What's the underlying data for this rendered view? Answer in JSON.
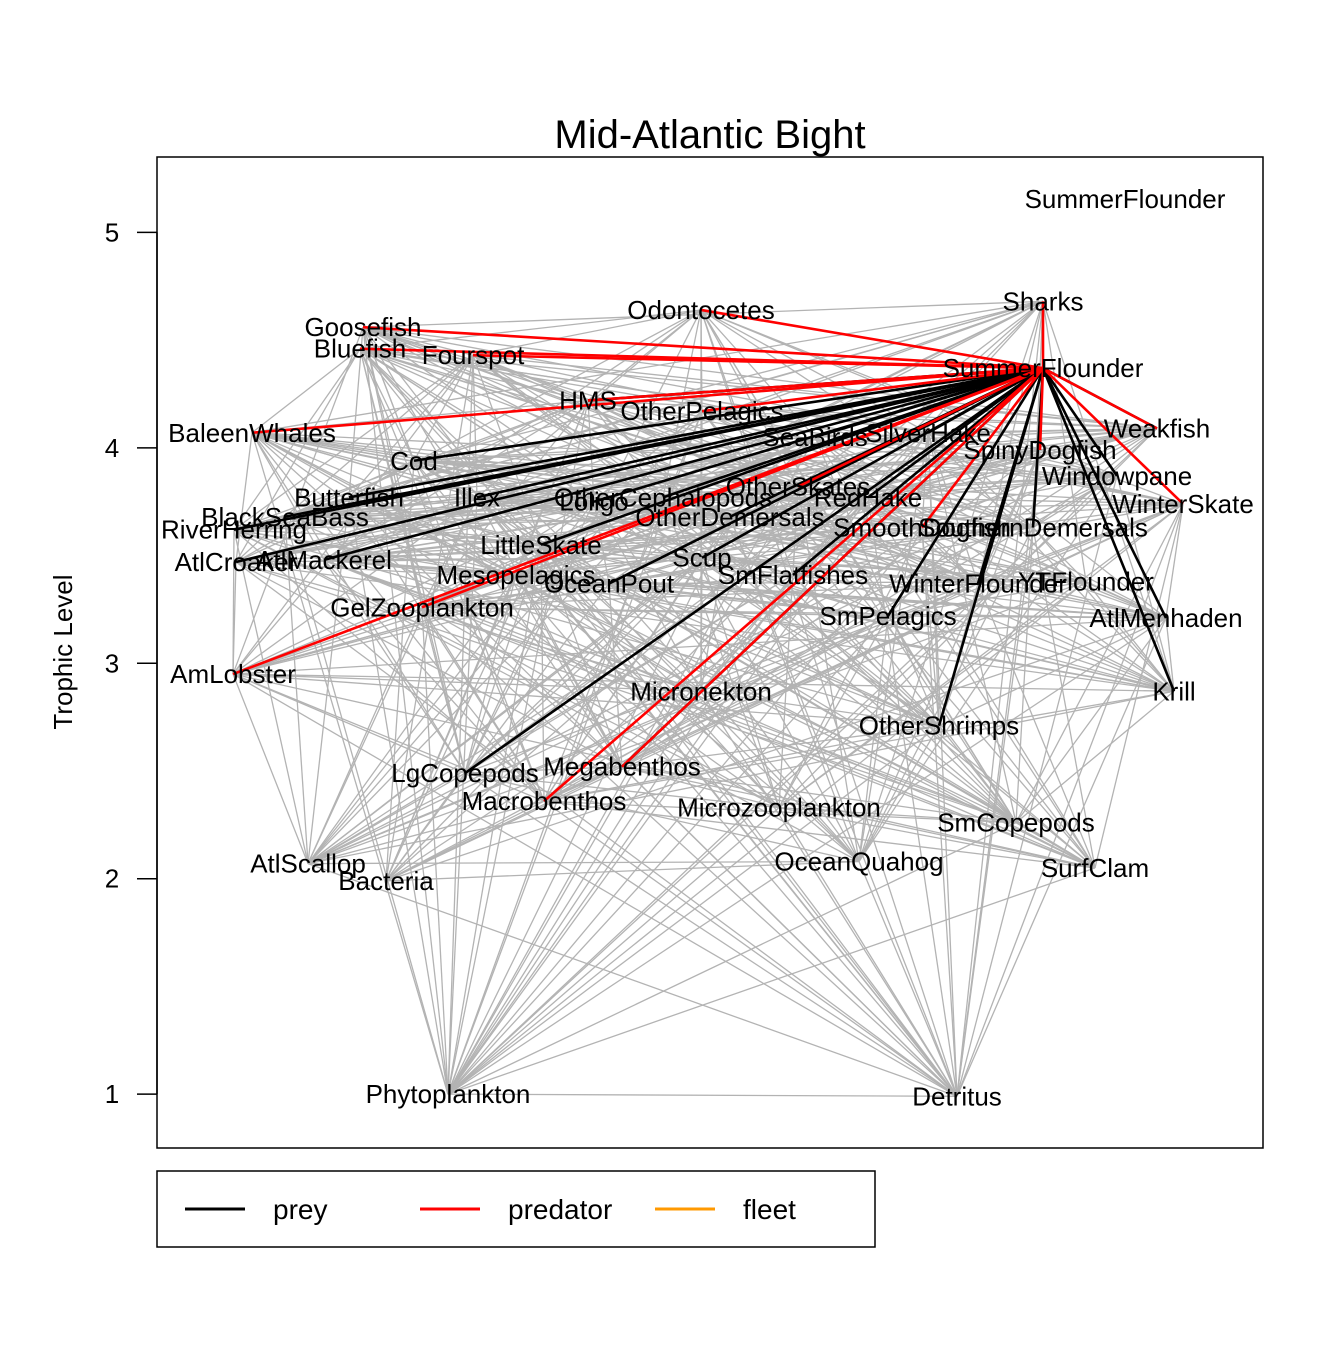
{
  "chart_data": {
    "type": "network",
    "title": "Mid-Atlantic Bight",
    "ylabel": "Trophic Level",
    "ylim": [
      0.75,
      5.35
    ],
    "yticks": [
      1,
      2,
      3,
      4,
      5
    ],
    "grid": false,
    "legend_position": "bottom-left",
    "legend": [
      {
        "name": "prey",
        "color": "#000000"
      },
      {
        "name": "predator",
        "color": "#ff0000"
      },
      {
        "name": "fleet",
        "color": "#ff9900"
      }
    ],
    "focal_node": "SummerFlounder",
    "focal_header": "SummerFlounder",
    "colors": {
      "background_edge": "#b3b3b3",
      "prey": "#000000",
      "predator": "#ff0000",
      "fleet": "#ff9900"
    },
    "nodes": [
      {
        "name": "SummerFlounder",
        "tl": 4.37
      },
      {
        "name": "Sharks",
        "tl": 4.68
      },
      {
        "name": "Odontocetes",
        "tl": 4.64
      },
      {
        "name": "Goosefish",
        "tl": 4.56
      },
      {
        "name": "Bluefish",
        "tl": 4.46
      },
      {
        "name": "Fourspot",
        "tl": 4.43
      },
      {
        "name": "HMS",
        "tl": 4.22
      },
      {
        "name": "OtherPelagics",
        "tl": 4.17
      },
      {
        "name": "BaleenWhales",
        "tl": 4.07
      },
      {
        "name": "Weakfish",
        "tl": 4.09
      },
      {
        "name": "SeaBirds",
        "tl": 4.05
      },
      {
        "name": "SilverHake",
        "tl": 4.07
      },
      {
        "name": "SpinyDogfish",
        "tl": 3.99
      },
      {
        "name": "Cod",
        "tl": 3.94
      },
      {
        "name": "Windowpane",
        "tl": 3.87
      },
      {
        "name": "OtherSkates",
        "tl": 3.82
      },
      {
        "name": "Butterfish",
        "tl": 3.77
      },
      {
        "name": "Illex",
        "tl": 3.77
      },
      {
        "name": "OtherCephalopods",
        "tl": 3.77
      },
      {
        "name": "RedHake",
        "tl": 3.77
      },
      {
        "name": "Loligo",
        "tl": 3.75
      },
      {
        "name": "WinterSkate",
        "tl": 3.74
      },
      {
        "name": "BlackSeaBass",
        "tl": 3.68
      },
      {
        "name": "OtherDemersals",
        "tl": 3.68
      },
      {
        "name": "SmoothDogfish",
        "tl": 3.63
      },
      {
        "name": "SouthernDemersals",
        "tl": 3.63
      },
      {
        "name": "RiverHerring",
        "tl": 3.62
      },
      {
        "name": "LittleSkate",
        "tl": 3.55
      },
      {
        "name": "Scup",
        "tl": 3.49
      },
      {
        "name": "AtlCroaker",
        "tl": 3.47
      },
      {
        "name": "AtlMackerel",
        "tl": 3.48
      },
      {
        "name": "Mesopelagics",
        "tl": 3.41
      },
      {
        "name": "OceanPout",
        "tl": 3.37
      },
      {
        "name": "SmFlatfishes",
        "tl": 3.41
      },
      {
        "name": "WinterFlounder",
        "tl": 3.37
      },
      {
        "name": "YTFlounder",
        "tl": 3.38
      },
      {
        "name": "GelZooplankton",
        "tl": 3.26
      },
      {
        "name": "SmPelagics",
        "tl": 3.22
      },
      {
        "name": "AtlMenhaden",
        "tl": 3.21
      },
      {
        "name": "AmLobster",
        "tl": 2.95
      },
      {
        "name": "Micronekton",
        "tl": 2.87
      },
      {
        "name": "Krill",
        "tl": 2.87
      },
      {
        "name": "OtherShrimps",
        "tl": 2.71
      },
      {
        "name": "LgCopepods",
        "tl": 2.49
      },
      {
        "name": "Megabenthos",
        "tl": 2.52
      },
      {
        "name": "Macrobenthos",
        "tl": 2.36
      },
      {
        "name": "Microzooplankton",
        "tl": 2.33
      },
      {
        "name": "SmCopepods",
        "tl": 2.26
      },
      {
        "name": "AtlScallop",
        "tl": 2.07
      },
      {
        "name": "OceanQuahog",
        "tl": 2.08
      },
      {
        "name": "SurfClam",
        "tl": 2.05
      },
      {
        "name": "Bacteria",
        "tl": 1.99
      },
      {
        "name": "Phytoplankton",
        "tl": 1.0
      },
      {
        "name": "Detritus",
        "tl": 0.99
      }
    ],
    "prey": [
      "Cod",
      "Butterfish",
      "Illex",
      "OtherCephalopods",
      "Loligo",
      "BlackSeaBass",
      "RiverHerring",
      "AtlMackerel",
      "AtlCroaker",
      "OceanPout",
      "Scup",
      "SmFlatfishes",
      "LittleSkate",
      "LgCopepods",
      "Megabenthos",
      "SmPelagics",
      "OtherShrimps",
      "AtlMenhaden",
      "Krill",
      "SilverHake",
      "RedHake",
      "OtherSkates",
      "SouthernDemersals",
      "WinterFlounder",
      "Weakfish",
      "Windowpane",
      "OtherDemersals",
      "SeaBirds",
      "HMS"
    ],
    "predators": [
      "Sharks",
      "Odontocetes",
      "Goosefish",
      "Bluefish",
      "Fourspot",
      "HMS",
      "OtherPelagics",
      "BaleenWhales",
      "SpinyDogfish",
      "Weakfish",
      "WinterSkate",
      "AmLobster",
      "SmoothDogfish",
      "Macrobenthos",
      "Megabenthos",
      "GelZooplankton",
      "OtherSkates"
    ]
  }
}
